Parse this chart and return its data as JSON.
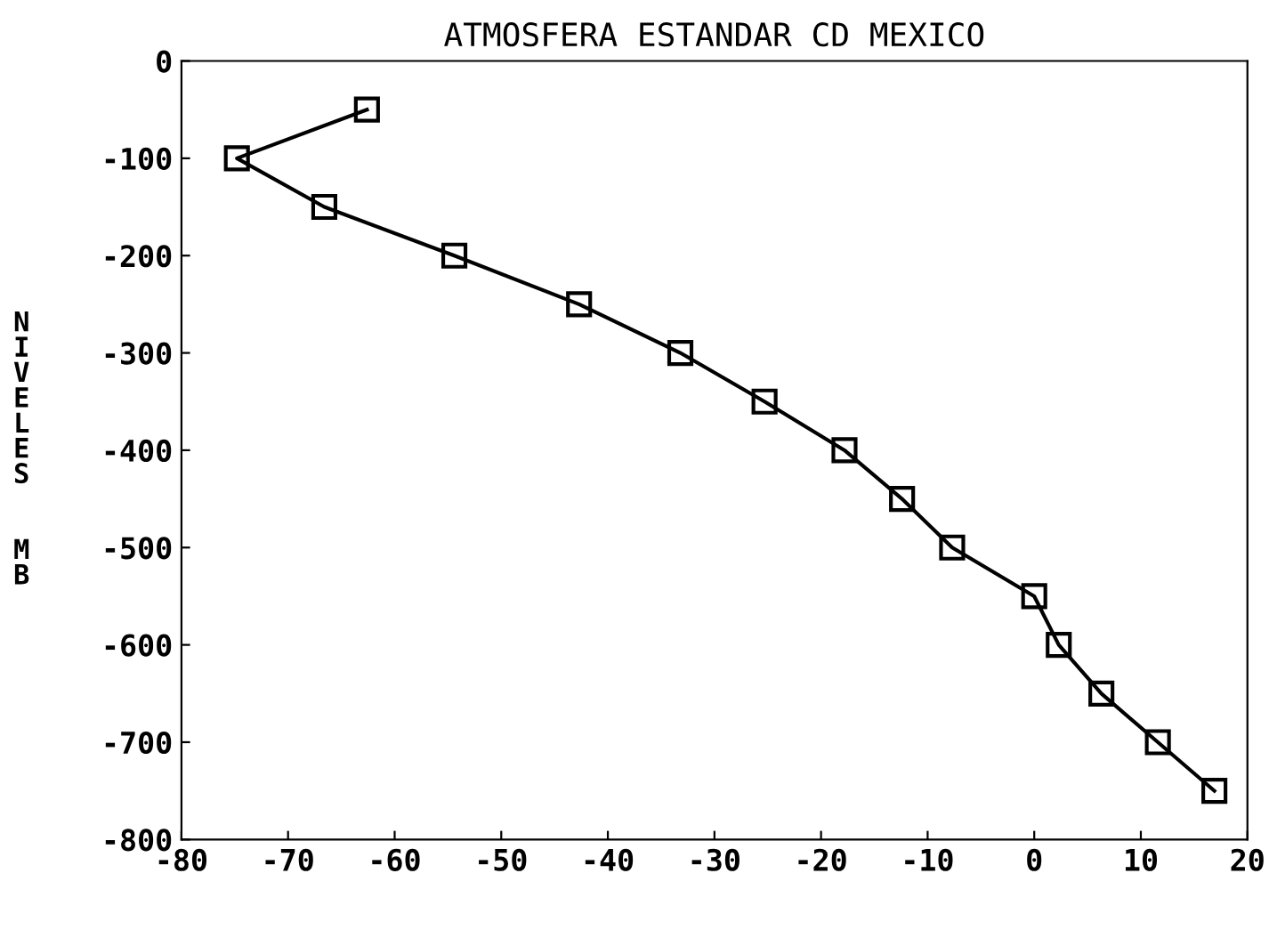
{
  "chart_data": {
    "type": "line",
    "title": "ATMOSFERA ESTANDAR CD MEXICO",
    "ylabel": "NIVELES  MB",
    "series": [
      {
        "color": "#000000",
        "x": [
          -62.6,
          -74.8,
          -66.6,
          -54.4,
          -42.7,
          -33.2,
          -25.3,
          -17.8,
          -12.4,
          -7.7,
          0,
          2.3,
          6.3,
          11.6,
          16.9
        ],
        "values": [
          -50,
          -100,
          -150,
          -200,
          -250,
          -300,
          -350,
          -400,
          -450,
          -500,
          -550,
          -600,
          -650,
          -700,
          -750
        ]
      }
    ],
    "xlim": [
      -80,
      20
    ],
    "xticks": [
      -80,
      -70,
      -60,
      -50,
      -40,
      -30,
      -20,
      -10,
      0,
      10,
      20
    ],
    "ylim": [
      -800,
      0
    ],
    "yticks": [
      0,
      -100,
      -200,
      -300,
      -400,
      -500,
      -600,
      -700,
      -800
    ],
    "marker": "square",
    "line_style": "solid",
    "grid": false,
    "legend": false
  }
}
